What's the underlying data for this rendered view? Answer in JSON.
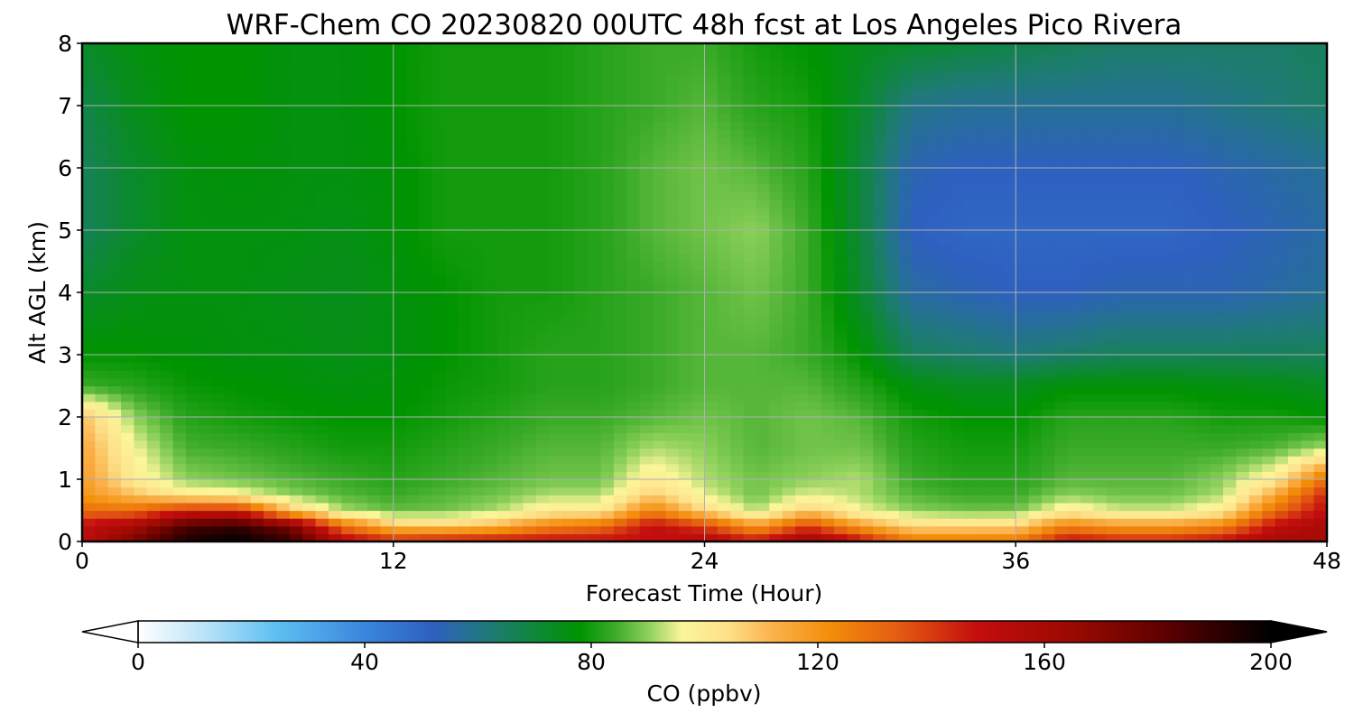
{
  "chart_data": {
    "type": "heatmap",
    "title": "WRF-Chem CO  20230820 00UTC 48h fcst at Los Angeles Pico Rivera",
    "xlabel": "Forecast Time (Hour)",
    "ylabel": "Alt AGL (km)",
    "xlim": [
      0,
      48
    ],
    "ylim": [
      0,
      8
    ],
    "xticks": [
      0,
      12,
      24,
      36,
      48
    ],
    "yticks": [
      0,
      1,
      2,
      3,
      4,
      5,
      6,
      7,
      8
    ],
    "grid": true,
    "x": [
      0,
      2,
      4,
      6,
      8,
      10,
      12,
      14,
      16,
      18,
      20,
      22,
      24,
      26,
      28,
      30,
      32,
      34,
      36,
      38,
      40,
      42,
      44,
      46,
      48
    ],
    "y": [
      0,
      0.25,
      0.5,
      0.75,
      1,
      1.5,
      2,
      2.5,
      3,
      4,
      5,
      6,
      7,
      8
    ],
    "z": [
      [
        150,
        175,
        195,
        200,
        190,
        155,
        145,
        148,
        150,
        150,
        150,
        148,
        155,
        148,
        165,
        150,
        128,
        128,
        128,
        150,
        145,
        145,
        150,
        160,
        160
      ],
      [
        150,
        160,
        185,
        190,
        175,
        130,
        110,
        108,
        112,
        125,
        130,
        150,
        140,
        118,
        140,
        118,
        105,
        105,
        106,
        125,
        118,
        118,
        125,
        150,
        160
      ],
      [
        130,
        130,
        145,
        145,
        110,
        92,
        87,
        88,
        92,
        100,
        100,
        125,
        105,
        92,
        108,
        96,
        90,
        88,
        88,
        100,
        94,
        94,
        100,
        130,
        150
      ],
      [
        120,
        110,
        100,
        98,
        90,
        86,
        84,
        86,
        88,
        92,
        92,
        108,
        95,
        88,
        95,
        92,
        86,
        84,
        84,
        90,
        88,
        88,
        92,
        115,
        145
      ],
      [
        118,
        100,
        90,
        88,
        86,
        84,
        82,
        84,
        86,
        88,
        88,
        100,
        92,
        88,
        90,
        92,
        84,
        82,
        82,
        86,
        86,
        86,
        90,
        100,
        130
      ],
      [
        115,
        96,
        85,
        84,
        82,
        80,
        80,
        82,
        84,
        86,
        86,
        92,
        90,
        86,
        88,
        88,
        82,
        80,
        80,
        84,
        84,
        84,
        84,
        86,
        92
      ],
      [
        110,
        90,
        82,
        80,
        79,
        78,
        78,
        80,
        82,
        84,
        84,
        86,
        88,
        86,
        88,
        86,
        80,
        78,
        78,
        82,
        82,
        82,
        80,
        80,
        78
      ],
      [
        84,
        82,
        79,
        78,
        77,
        76,
        77,
        79,
        80,
        82,
        82,
        84,
        86,
        86,
        86,
        82,
        76,
        74,
        74,
        77,
        77,
        77,
        76,
        75,
        73
      ],
      [
        78,
        78,
        77,
        76,
        76,
        75,
        76,
        78,
        80,
        82,
        82,
        84,
        86,
        86,
        84,
        78,
        66,
        64,
        62,
        64,
        66,
        66,
        66,
        66,
        66
      ],
      [
        72,
        75,
        76,
        76,
        75,
        74,
        76,
        78,
        80,
        80,
        82,
        84,
        86,
        88,
        84,
        72,
        56,
        54,
        52,
        52,
        54,
        54,
        54,
        56,
        58
      ],
      [
        66,
        72,
        76,
        76,
        76,
        75,
        77,
        80,
        80,
        80,
        82,
        86,
        88,
        90,
        84,
        70,
        52,
        50,
        50,
        50,
        50,
        50,
        52,
        54,
        56
      ],
      [
        66,
        72,
        76,
        77,
        76,
        76,
        77,
        80,
        80,
        80,
        82,
        86,
        88,
        86,
        82,
        70,
        54,
        52,
        52,
        52,
        52,
        52,
        54,
        56,
        58
      ],
      [
        68,
        74,
        78,
        78,
        76,
        76,
        78,
        80,
        80,
        80,
        82,
        84,
        86,
        82,
        80,
        72,
        60,
        58,
        58,
        58,
        58,
        58,
        60,
        62,
        64
      ],
      [
        72,
        76,
        78,
        78,
        76,
        76,
        78,
        80,
        80,
        80,
        82,
        84,
        84,
        80,
        78,
        74,
        72,
        70,
        68,
        66,
        64,
        64,
        64,
        64,
        66
      ]
    ],
    "colorbar": {
      "label": "CO  (ppbv)",
      "min": 0,
      "max": 200,
      "ticks": [
        0,
        40,
        80,
        120,
        160,
        200
      ],
      "extend": "both",
      "stops": [
        {
          "v": 0,
          "c": "#ffffff"
        },
        {
          "v": 12,
          "c": "#b8e2f8"
        },
        {
          "v": 24,
          "c": "#5fc0f2"
        },
        {
          "v": 40,
          "c": "#3a86dc"
        },
        {
          "v": 52,
          "c": "#2e60c0"
        },
        {
          "v": 62,
          "c": "#1f7a78"
        },
        {
          "v": 72,
          "c": "#0a8a2a"
        },
        {
          "v": 78,
          "c": "#009400"
        },
        {
          "v": 84,
          "c": "#3aaa28"
        },
        {
          "v": 90,
          "c": "#8cd05a"
        },
        {
          "v": 96,
          "c": "#fcf59a"
        },
        {
          "v": 104,
          "c": "#fde18a"
        },
        {
          "v": 112,
          "c": "#fbb24d"
        },
        {
          "v": 122,
          "c": "#f38e0a"
        },
        {
          "v": 134,
          "c": "#e55d12"
        },
        {
          "v": 148,
          "c": "#c40e0e"
        },
        {
          "v": 165,
          "c": "#9a0a00"
        },
        {
          "v": 182,
          "c": "#5a0000"
        },
        {
          "v": 200,
          "c": "#000000"
        }
      ]
    }
  }
}
